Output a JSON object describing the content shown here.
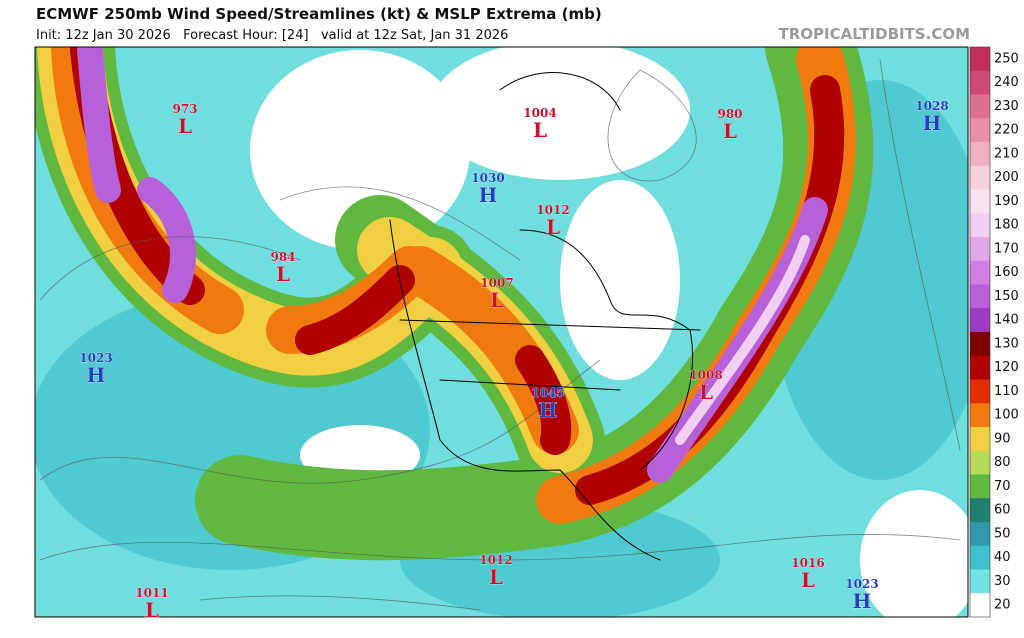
{
  "header": {
    "title": "ECMWF 250mb Wind Speed/Streamlines (kt) & MSLP Extrema (mb)",
    "subtitle": "Init: 12z Jan 30 2026   Forecast Hour: [24]   valid at 12z Sat, Jan 31 2026",
    "source": "TROPICALTIDBITS.COM"
  },
  "colorbar": {
    "labels": [
      250,
      240,
      230,
      220,
      210,
      200,
      190,
      180,
      170,
      160,
      150,
      140,
      130,
      120,
      110,
      100,
      90,
      80,
      70,
      60,
      50,
      40,
      30,
      20
    ],
    "colors": [
      "#c0305a",
      "#d04a78",
      "#e07090",
      "#e890a8",
      "#f0b0c0",
      "#f8d0dc",
      "#f8e2ee",
      "#f2cff2",
      "#e2a6ea",
      "#d080e0",
      "#b860d8",
      "#9a3ec0",
      "#800000",
      "#b00000",
      "#e03000",
      "#f07a10",
      "#f0d040",
      "#b8dc58",
      "#60b840",
      "#208070",
      "#3098a8",
      "#40c0cc",
      "#70e4e4",
      "#ffffff"
    ]
  },
  "extrema": [
    {
      "value": 973,
      "type": "L"
    },
    {
      "value": 1004,
      "type": "L"
    },
    {
      "value": 980,
      "type": "L"
    },
    {
      "value": 1028,
      "type": "H"
    },
    {
      "value": 1030,
      "type": "H"
    },
    {
      "value": 1012,
      "type": "L"
    },
    {
      "value": 984,
      "type": "L"
    },
    {
      "value": 1007,
      "type": "L"
    },
    {
      "value": 1023,
      "type": "H"
    },
    {
      "value": 1045,
      "type": "H"
    },
    {
      "value": 1008,
      "type": "L"
    },
    {
      "value": 1012,
      "type": "L"
    },
    {
      "value": 1011,
      "type": "L"
    },
    {
      "value": 1016,
      "type": "L"
    },
    {
      "value": 1023,
      "type": "H"
    }
  ]
}
